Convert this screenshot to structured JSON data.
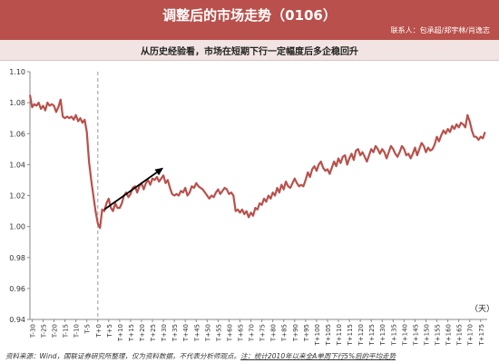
{
  "header": {
    "title": "调整后的市场走势（0106）",
    "contacts": "联系人：包承超/郑宇林/肖逸志"
  },
  "subtitle": "从历史经验看，市场在短期下行一定幅度后多企稳回升",
  "footer": {
    "source": "资料来源：Wind，国联证券研究所整理，仅为资料数据，不代表分析师观点。",
    "note": "注：统计2010年以来全A单周下行5%后的平均走势"
  },
  "colors": {
    "header_bg": "#b9504b",
    "line": "#b9504b",
    "arrow": "#000000",
    "dashed": "#aaaaaa"
  },
  "chart_data": {
    "type": "line",
    "unit_label": "（天）",
    "ylim": [
      0.94,
      1.1
    ],
    "yticks": [
      "1.10",
      "1.08",
      "1.06",
      "1.04",
      "1.02",
      "1.00",
      "0.98",
      "0.96",
      "0.94"
    ],
    "xticks": [
      "T-30",
      "T-25",
      "T-20",
      "T-15",
      "T-10",
      "T-5",
      "T+0",
      "T+5",
      "T+10",
      "T+15",
      "T+20",
      "T+25",
      "T+30",
      "T+35",
      "T+40",
      "T+45",
      "T+50",
      "T+55",
      "T+60",
      "T+65",
      "T+70",
      "T+75",
      "T+80",
      "T+85",
      "T+90",
      "T+95",
      "T+100",
      "T+105",
      "T+110",
      "T+115",
      "T+120",
      "T+125",
      "T+130",
      "T+135",
      "T+140",
      "T+145",
      "T+150",
      "T+155",
      "T+160",
      "T+165",
      "T+170",
      "T+175"
    ],
    "xticks_rotated": true,
    "vertical_marker": "T+0",
    "arrow": {
      "from": [
        "T+3",
        1.011
      ],
      "to": [
        "T+30",
        1.038
      ]
    },
    "series": [
      {
        "points": [
          [
            -31,
            1.085
          ],
          [
            -30,
            1.077
          ],
          [
            -29,
            1.079
          ],
          [
            -28,
            1.078
          ],
          [
            -27,
            1.08
          ],
          [
            -26,
            1.076
          ],
          [
            -25,
            1.078
          ],
          [
            -24,
            1.075
          ],
          [
            -23,
            1.08
          ],
          [
            -22,
            1.078
          ],
          [
            -21,
            1.079
          ],
          [
            -20,
            1.078
          ],
          [
            -19,
            1.074
          ],
          [
            -18,
            1.077
          ],
          [
            -17,
            1.082
          ],
          [
            -16,
            1.071
          ],
          [
            -15,
            1.07
          ],
          [
            -14,
            1.071
          ],
          [
            -13,
            1.07
          ],
          [
            -12,
            1.071
          ],
          [
            -11,
            1.069
          ],
          [
            -10,
            1.072
          ],
          [
            -9,
            1.068
          ],
          [
            -8,
            1.07
          ],
          [
            -7,
            1.067
          ],
          [
            -6,
            1.069
          ],
          [
            -5,
            1.061
          ],
          [
            -4,
            1.042
          ],
          [
            -3,
            1.03
          ],
          [
            -2,
            1.02
          ],
          [
            -1,
            1.01
          ],
          [
            0,
            1.002
          ],
          [
            1,
            0.999
          ],
          [
            2,
            1.011
          ],
          [
            3,
            1.01
          ],
          [
            4,
            1.015
          ],
          [
            5,
            1.018
          ],
          [
            6,
            1.012
          ],
          [
            7,
            1.01
          ],
          [
            8,
            1.015
          ],
          [
            9,
            1.012
          ],
          [
            10,
            1.012
          ],
          [
            11,
            1.015
          ],
          [
            12,
            1.02
          ],
          [
            13,
            1.022
          ],
          [
            14,
            1.019
          ],
          [
            15,
            1.021
          ],
          [
            16,
            1.025
          ],
          [
            17,
            1.026
          ],
          [
            18,
            1.022
          ],
          [
            19,
            1.026
          ],
          [
            20,
            1.028
          ],
          [
            21,
            1.024
          ],
          [
            22,
            1.028
          ],
          [
            23,
            1.03
          ],
          [
            24,
            1.027
          ],
          [
            25,
            1.031
          ],
          [
            26,
            1.03
          ],
          [
            27,
            1.032
          ],
          [
            28,
            1.029
          ],
          [
            29,
            1.031
          ],
          [
            30,
            1.033
          ],
          [
            31,
            1.028
          ],
          [
            32,
            1.03
          ],
          [
            33,
            1.025
          ],
          [
            34,
            1.021
          ],
          [
            35,
            1.02
          ],
          [
            36,
            1.021
          ],
          [
            37,
            1.02
          ],
          [
            38,
            1.023
          ],
          [
            39,
            1.022
          ],
          [
            40,
            1.025
          ],
          [
            41,
            1.02
          ],
          [
            42,
            1.022
          ],
          [
            43,
            1.026
          ],
          [
            44,
            1.025
          ],
          [
            45,
            1.028
          ],
          [
            46,
            1.026
          ],
          [
            47,
            1.025
          ],
          [
            48,
            1.024
          ],
          [
            49,
            1.022
          ],
          [
            50,
            1.02
          ],
          [
            51,
            1.018
          ],
          [
            52,
            1.02
          ],
          [
            53,
            1.019
          ],
          [
            54,
            1.022
          ],
          [
            55,
            1.024
          ],
          [
            56,
            1.021
          ],
          [
            57,
            1.023
          ],
          [
            58,
            1.025
          ],
          [
            59,
            1.024
          ],
          [
            60,
            1.021
          ],
          [
            61,
            1.022
          ],
          [
            62,
            1.02
          ],
          [
            63,
            1.01
          ],
          [
            64,
            1.011
          ],
          [
            65,
            1.009
          ],
          [
            66,
            1.011
          ],
          [
            67,
            1.008
          ],
          [
            68,
            1.01
          ],
          [
            69,
            1.006
          ],
          [
            70,
            1.009
          ],
          [
            71,
            1.007
          ],
          [
            72,
            1.012
          ],
          [
            73,
            1.011
          ],
          [
            74,
            1.015
          ],
          [
            75,
            1.014
          ],
          [
            76,
            1.018
          ],
          [
            77,
            1.016
          ],
          [
            78,
            1.02
          ],
          [
            79,
            1.018
          ],
          [
            80,
            1.022
          ],
          [
            81,
            1.02
          ],
          [
            82,
            1.025
          ],
          [
            83,
            1.022
          ],
          [
            84,
            1.027
          ],
          [
            85,
            1.024
          ],
          [
            86,
            1.029
          ],
          [
            87,
            1.026
          ],
          [
            88,
            1.025
          ],
          [
            89,
            1.028
          ],
          [
            90,
            1.031
          ],
          [
            91,
            1.028
          ],
          [
            92,
            1.026
          ],
          [
            93,
            1.027
          ],
          [
            94,
            1.026
          ],
          [
            95,
            1.03
          ],
          [
            96,
            1.035
          ],
          [
            97,
            1.032
          ],
          [
            98,
            1.037
          ],
          [
            99,
            1.039
          ],
          [
            100,
            1.036
          ],
          [
            101,
            1.04
          ],
          [
            102,
            1.042
          ],
          [
            103,
            1.038
          ],
          [
            104,
            1.036
          ],
          [
            105,
            1.037
          ],
          [
            106,
            1.034
          ],
          [
            107,
            1.038
          ],
          [
            108,
            1.042
          ],
          [
            109,
            1.039
          ],
          [
            110,
            1.044
          ],
          [
            111,
            1.041
          ],
          [
            112,
            1.045
          ],
          [
            113,
            1.046
          ],
          [
            114,
            1.04
          ],
          [
            115,
            1.044
          ],
          [
            116,
            1.047
          ],
          [
            117,
            1.043
          ],
          [
            118,
            1.049
          ],
          [
            119,
            1.05
          ],
          [
            120,
            1.046
          ],
          [
            121,
            1.048
          ],
          [
            122,
            1.045
          ],
          [
            123,
            1.042
          ],
          [
            124,
            1.046
          ],
          [
            125,
            1.05
          ],
          [
            126,
            1.048
          ],
          [
            127,
            1.052
          ],
          [
            128,
            1.05
          ],
          [
            129,
            1.047
          ],
          [
            130,
            1.05
          ],
          [
            131,
            1.048
          ],
          [
            132,
            1.044
          ],
          [
            133,
            1.048
          ],
          [
            134,
            1.052
          ],
          [
            135,
            1.05
          ],
          [
            136,
            1.047
          ],
          [
            137,
            1.045
          ],
          [
            138,
            1.048
          ],
          [
            139,
            1.052
          ],
          [
            140,
            1.05
          ],
          [
            141,
            1.046
          ],
          [
            142,
            1.047
          ],
          [
            143,
            1.044
          ],
          [
            144,
            1.047
          ],
          [
            145,
            1.051
          ],
          [
            146,
            1.046
          ],
          [
            147,
            1.05
          ],
          [
            148,
            1.054
          ],
          [
            149,
            1.052
          ],
          [
            150,
            1.048
          ],
          [
            151,
            1.051
          ],
          [
            152,
            1.049
          ],
          [
            153,
            1.05
          ],
          [
            154,
            1.053
          ],
          [
            155,
            1.058
          ],
          [
            156,
            1.055
          ],
          [
            157,
            1.059
          ],
          [
            158,
            1.062
          ],
          [
            159,
            1.06
          ],
          [
            160,
            1.063
          ],
          [
            161,
            1.061
          ],
          [
            162,
            1.065
          ],
          [
            163,
            1.063
          ],
          [
            164,
            1.066
          ],
          [
            165,
            1.064
          ],
          [
            166,
            1.067
          ],
          [
            167,
            1.066
          ],
          [
            168,
            1.064
          ],
          [
            169,
            1.072
          ],
          [
            170,
            1.068
          ],
          [
            171,
            1.062
          ],
          [
            172,
            1.058
          ],
          [
            173,
            1.058
          ],
          [
            174,
            1.056
          ],
          [
            175,
            1.058
          ],
          [
            176,
            1.057
          ],
          [
            177,
            1.061
          ]
        ]
      }
    ]
  }
}
